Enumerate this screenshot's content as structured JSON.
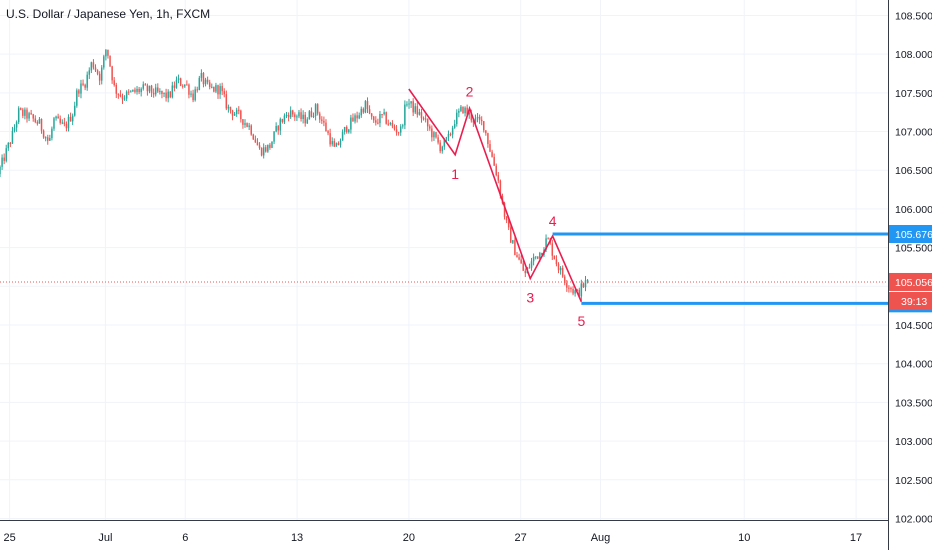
{
  "chart_data": {
    "type": "candlestick",
    "title": "U.S. Dollar / Japanese Yen, 1h, FXCM",
    "symbol": "USDJPY",
    "timeframe": "1h",
    "source": "FXCM",
    "colors": {
      "up": "#26a69a",
      "down": "#ef5350",
      "wave": "#e91e4f",
      "level": "#2196f3",
      "current_price": "#ef5350",
      "grid": "#f0f3fa",
      "axis_text": "#131722"
    },
    "y_axis": {
      "min": 101.98,
      "max": 108.7,
      "ticks": [
        "102.000",
        "102.500",
        "103.000",
        "103.500",
        "104.000",
        "104.500",
        "105.000",
        "105.500",
        "106.000",
        "106.500",
        "107.000",
        "107.500",
        "108.000",
        "108.500"
      ]
    },
    "x_axis": {
      "ticks": [
        {
          "label": "25",
          "day": 0
        },
        {
          "label": "Jul",
          "day": 6
        },
        {
          "label": "6",
          "day": 11
        },
        {
          "label": "13",
          "day": 18
        },
        {
          "label": "20",
          "day": 25
        },
        {
          "label": "27",
          "day": 32
        },
        {
          "label": "Aug",
          "day": 37
        },
        {
          "label": "10",
          "day": 46
        },
        {
          "label": "17",
          "day": 53
        }
      ],
      "range": [
        -0.6,
        55.0
      ]
    },
    "price_path": [
      [
        -0.6,
        106.45
      ],
      [
        0.3,
        106.95
      ],
      [
        0.7,
        107.25
      ],
      [
        1.3,
        107.2
      ],
      [
        2.0,
        107.1
      ],
      [
        2.6,
        106.85
      ],
      [
        2.9,
        107.15
      ],
      [
        3.6,
        107.05
      ],
      [
        4.1,
        107.25
      ],
      [
        4.4,
        107.55
      ],
      [
        4.8,
        107.6
      ],
      [
        5.3,
        107.9
      ],
      [
        5.8,
        107.7
      ],
      [
        6.2,
        108.1
      ],
      [
        6.7,
        107.55
      ],
      [
        7.2,
        107.45
      ],
      [
        7.8,
        107.5
      ],
      [
        8.5,
        107.55
      ],
      [
        9.3,
        107.5
      ],
      [
        10.1,
        107.45
      ],
      [
        10.6,
        107.65
      ],
      [
        11.2,
        107.6
      ],
      [
        11.6,
        107.45
      ],
      [
        12.1,
        107.7
      ],
      [
        12.6,
        107.55
      ],
      [
        13.3,
        107.55
      ],
      [
        13.8,
        107.3
      ],
      [
        14.5,
        107.2
      ],
      [
        15.2,
        107.05
      ],
      [
        15.8,
        106.75
      ],
      [
        16.4,
        106.8
      ],
      [
        17.0,
        107.1
      ],
      [
        17.6,
        107.25
      ],
      [
        18.6,
        107.15
      ],
      [
        19.3,
        107.3
      ],
      [
        19.9,
        107.05
      ],
      [
        20.5,
        106.75
      ],
      [
        21.2,
        107.05
      ],
      [
        21.9,
        107.2
      ],
      [
        22.4,
        107.35
      ],
      [
        22.9,
        107.1
      ],
      [
        23.5,
        107.2
      ],
      [
        24.1,
        107.05
      ],
      [
        24.6,
        107.0
      ],
      [
        25.0,
        107.4
      ],
      [
        25.4,
        107.3
      ],
      [
        25.9,
        107.2
      ],
      [
        26.5,
        107.0
      ],
      [
        27.1,
        106.8
      ],
      [
        27.6,
        106.9
      ],
      [
        28.0,
        107.15
      ],
      [
        28.5,
        107.3
      ],
      [
        29.2,
        107.15
      ],
      [
        29.8,
        107.1
      ],
      [
        30.3,
        106.7
      ],
      [
        30.7,
        106.4
      ],
      [
        31.0,
        106.05
      ],
      [
        31.3,
        105.75
      ],
      [
        31.7,
        105.5
      ],
      [
        32.0,
        105.35
      ],
      [
        32.4,
        105.15
      ],
      [
        32.9,
        105.35
      ],
      [
        33.4,
        105.45
      ],
      [
        33.8,
        105.62
      ],
      [
        34.2,
        105.4
      ],
      [
        34.6,
        105.2
      ],
      [
        35.0,
        105.05
      ],
      [
        35.4,
        104.95
      ],
      [
        35.7,
        104.9
      ],
      [
        36.0,
        105.0
      ],
      [
        36.3,
        105.06
      ]
    ],
    "candle_width_days": 0.13,
    "waves": {
      "points": [
        {
          "label": "",
          "day": 25.0,
          "price": 107.55
        },
        {
          "label": "1",
          "day": 27.9,
          "price": 106.7
        },
        {
          "label": "2",
          "day": 28.8,
          "price": 107.3
        },
        {
          "label": "3",
          "day": 32.6,
          "price": 105.1
        },
        {
          "label": "4",
          "day": 34.0,
          "price": 105.65
        },
        {
          "label": "5",
          "day": 35.8,
          "price": 104.8
        }
      ]
    },
    "levels": [
      {
        "price": 105.676,
        "label": "105.676",
        "from_day": 34.0
      },
      {
        "price": 104.78,
        "label": "104.780",
        "from_day": 35.8
      }
    ],
    "current_price": {
      "price": 105.056,
      "label": "105.056",
      "countdown": "39:13"
    }
  }
}
